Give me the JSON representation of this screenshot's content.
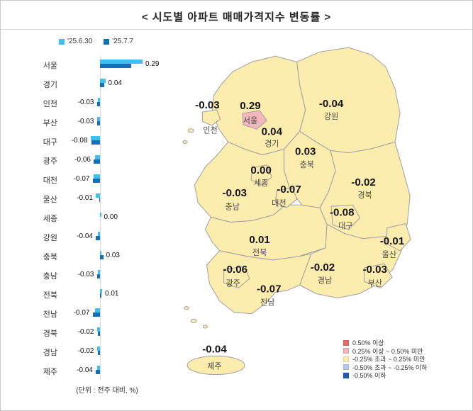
{
  "title": "< 시도별 아파트 매매가격지수 변동률 >",
  "chart_data": {
    "type": "bar",
    "orientation": "horizontal",
    "title": "시도별 아파트 매매가격지수 변동률",
    "unit_note": "(단위 : 전주 대비, %)",
    "legend_position": "top",
    "xlim": [
      -0.12,
      0.45
    ],
    "categories": [
      "서울",
      "경기",
      "인천",
      "부산",
      "대구",
      "광주",
      "대전",
      "울산",
      "세종",
      "강원",
      "충북",
      "충남",
      "전북",
      "전남",
      "경북",
      "경남",
      "제주"
    ],
    "series": [
      {
        "name": "'25.6.30",
        "color": "#3fc1f0",
        "values": [
          0.4,
          0.05,
          -0.02,
          -0.03,
          -0.09,
          -0.05,
          -0.06,
          -0.04,
          0.01,
          -0.02,
          0.01,
          -0.02,
          0.02,
          -0.05,
          -0.03,
          -0.03,
          -0.03
        ]
      },
      {
        "name": "'25.7.7",
        "color": "#1170b8",
        "values": [
          0.29,
          0.04,
          -0.03,
          -0.03,
          -0.08,
          -0.06,
          -0.07,
          -0.01,
          0.0,
          -0.04,
          0.03,
          -0.03,
          0.01,
          -0.07,
          -0.02,
          -0.02,
          -0.04
        ]
      }
    ],
    "value_labels": [
      "0.29",
      "0.04",
      "-0.03",
      "-0.03",
      "-0.08",
      "-0.06",
      "-0.07",
      "-0.01",
      "0.00",
      "-0.04",
      "0.03",
      "-0.03",
      "0.01",
      "-0.07",
      "-0.02",
      "-0.02",
      "-0.04"
    ]
  },
  "map": {
    "colors": {
      "default": "#fcecae",
      "seoul": "#f4b7bd",
      "border": "#a0a0a0"
    },
    "regions": {
      "seoul": {
        "label": "서울",
        "value": "0.29"
      },
      "incheon": {
        "label": "인천",
        "value": "-0.03"
      },
      "gyeonggi": {
        "label": "경기",
        "value": "0.04"
      },
      "gangwon": {
        "label": "강원",
        "value": "-0.04"
      },
      "chungbuk": {
        "label": "충북",
        "value": "0.03"
      },
      "chungnam": {
        "label": "충남",
        "value": "-0.03"
      },
      "sejong": {
        "label": "세종",
        "value": "0.00"
      },
      "daejeon": {
        "label": "대전",
        "value": "-0.07"
      },
      "gyeongbuk": {
        "label": "경북",
        "value": "-0.02"
      },
      "daegu": {
        "label": "대구",
        "value": "-0.08"
      },
      "ulsan": {
        "label": "울산",
        "value": "-0.01"
      },
      "jeonbuk": {
        "label": "전북",
        "value": "0.01"
      },
      "gwangju": {
        "label": "광주",
        "value": "-0.06"
      },
      "jeonnam": {
        "label": "전남",
        "value": "-0.07"
      },
      "gyeongnam": {
        "label": "경남",
        "value": "-0.02"
      },
      "busan": {
        "label": "부산",
        "value": "-0.03"
      },
      "jeju": {
        "label": "제주",
        "value": "-0.04"
      }
    },
    "legend": [
      {
        "label": "0.50% 이상",
        "color": "#e86c6c"
      },
      {
        "label": "0.25% 이상 ~ 0.50% 미만",
        "color": "#f4b7bd"
      },
      {
        "label": "-0.25% 초과 ~ 0.25% 미만",
        "color": "#fcecae"
      },
      {
        "label": "-0.50% 초과 ~ -0.25% 이하",
        "color": "#b9cbe9"
      },
      {
        "label": "-0.50% 이하",
        "color": "#1d5fae"
      }
    ]
  }
}
